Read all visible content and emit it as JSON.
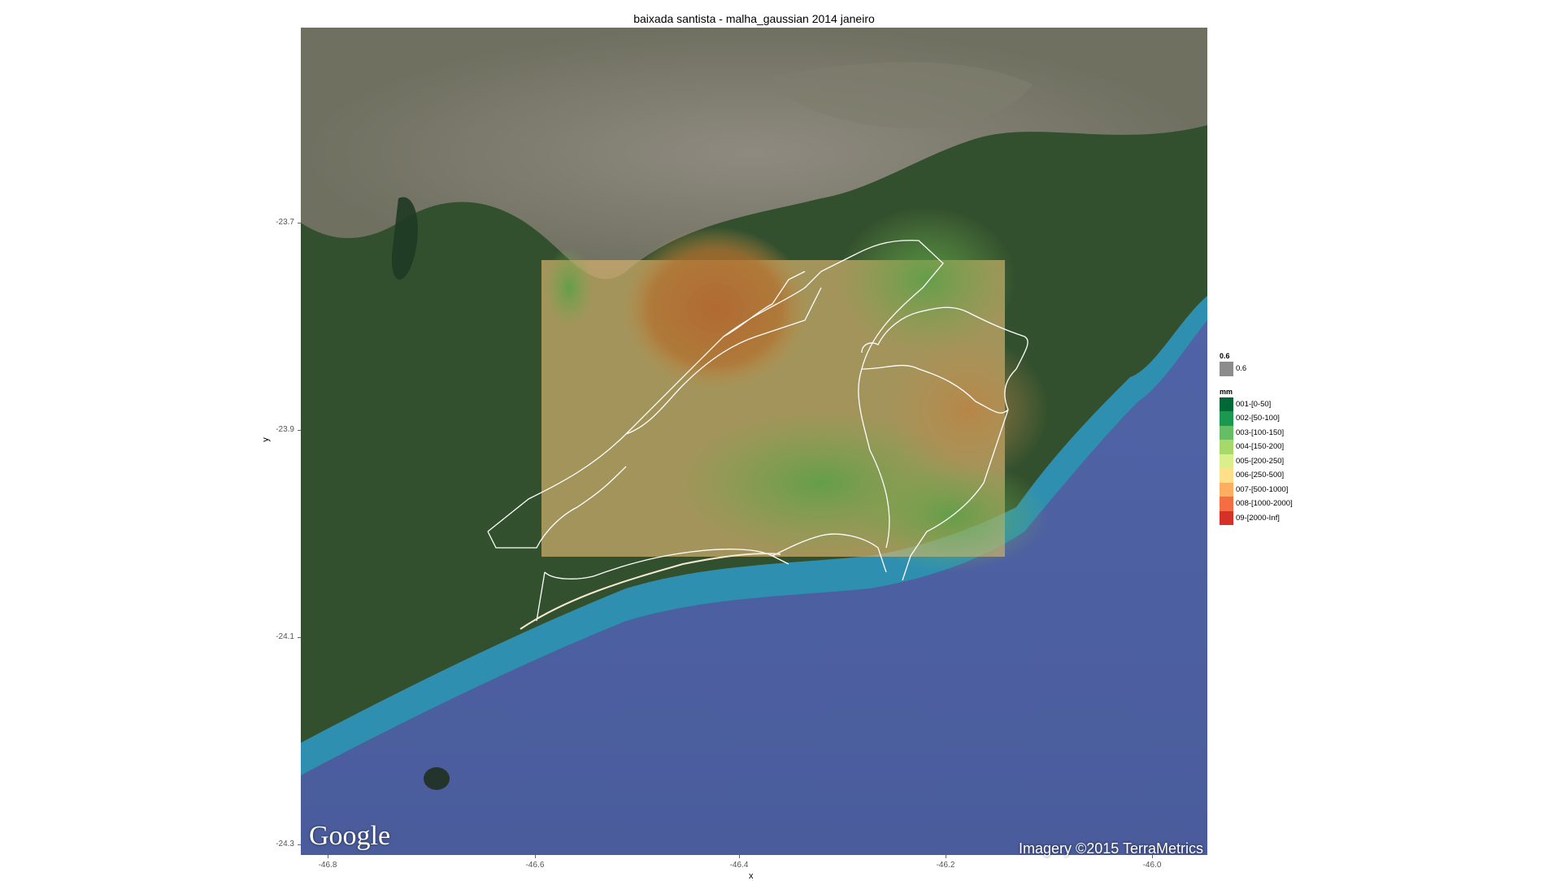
{
  "title": "baixada santista - malha_gaussian 2014 janeiro",
  "axes": {
    "xlabel": "x",
    "ylabel": "y",
    "xticks": [
      "-46.8",
      "-46.6",
      "-46.4",
      "-46.2",
      "-46.0"
    ],
    "yticks": [
      "-23.7",
      "-23.9",
      "-24.1",
      "-24.3"
    ]
  },
  "legend": {
    "alpha": {
      "title": "0.6",
      "label": "0.6",
      "color": "#8c8c8c"
    },
    "fill": {
      "title": "mm",
      "items": [
        {
          "label": "001-[0-50]",
          "color": "#006837"
        },
        {
          "label": "002-[50-100]",
          "color": "#1a9850"
        },
        {
          "label": "003-[100-150]",
          "color": "#66bd63"
        },
        {
          "label": "004-[150-200]",
          "color": "#a6d96a"
        },
        {
          "label": "005-[200-250]",
          "color": "#d9ef8b"
        },
        {
          "label": "006-[250-500]",
          "color": "#fee08b"
        },
        {
          "label": "007-[500-1000]",
          "color": "#fdae61"
        },
        {
          "label": "008-[1000-2000]",
          "color": "#f46d43"
        },
        {
          "label": "09-[2000-Inf]",
          "color": "#d73027"
        }
      ]
    }
  },
  "attribution": {
    "logo": "Google",
    "credit": "Imagery ©2015 TerraMetrics"
  },
  "colors": {
    "land_dark": "#2e4a2a",
    "urban": "#8a8578",
    "ocean": "#4a5c9c",
    "coast_water": "#2f8fb0",
    "boundary": "#ffffff"
  }
}
